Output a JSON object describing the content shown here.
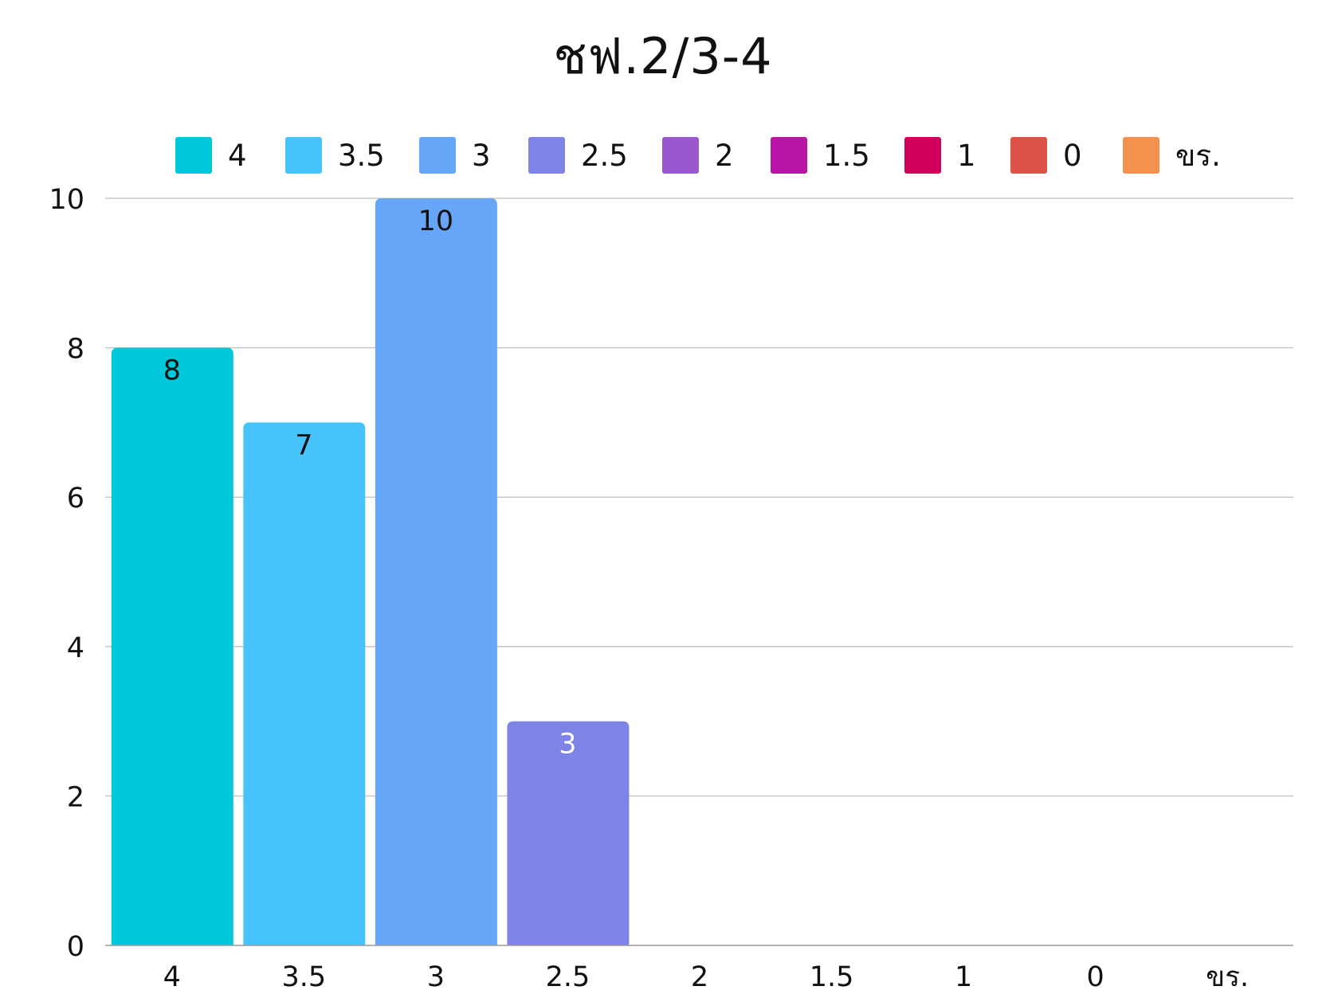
{
  "chart_data": {
    "type": "bar",
    "title": "ชฟ.2/3-4",
    "categories": [
      "4",
      "3.5",
      "3",
      "2.5",
      "2",
      "1.5",
      "1",
      "0",
      "ขร."
    ],
    "values": [
      8,
      7,
      10,
      3,
      0,
      0,
      0,
      0,
      0
    ],
    "colors": [
      "#00C8DB",
      "#47C3FC",
      "#65A6F9",
      "#7E83E5",
      "#9A58CE",
      "#BA15A4",
      "#D2005C",
      "#DF5249",
      "#F5914F"
    ],
    "data_labels": [
      "8",
      "7",
      "10",
      "3",
      "",
      "",
      "",
      "",
      ""
    ],
    "data_label_colors": [
      "#111111",
      "#111111",
      "#111111",
      "#ffffff",
      "#111111",
      "#111111",
      "#111111",
      "#111111",
      "#111111"
    ],
    "xlabel": "",
    "ylabel": "",
    "ylim": [
      0,
      10
    ],
    "yticks": [
      "0",
      "2",
      "4",
      "6",
      "8",
      "10"
    ],
    "grid": true,
    "legend": {
      "position": "top",
      "entries": [
        "4",
        "3.5",
        "3",
        "2.5",
        "2",
        "1.5",
        "1",
        "0",
        "ขร."
      ]
    }
  }
}
